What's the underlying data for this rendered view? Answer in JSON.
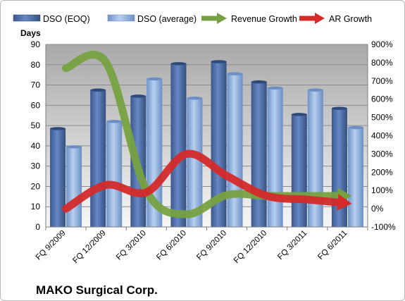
{
  "chart_data": {
    "type": "bar",
    "title": "MAKO Surgical Corp.",
    "ylabel": "Days",
    "categories": [
      "FQ 9/2009",
      "FQ 12/2009",
      "FQ 3/2010",
      "FQ 6/2010",
      "FQ 9/2010",
      "FQ 12/2010",
      "FQ 3/2011",
      "FQ 6/2011"
    ],
    "ylim": [
      0,
      90
    ],
    "y_ticks": [
      "0",
      "10",
      "20",
      "30",
      "40",
      "50",
      "60",
      "70",
      "80",
      "90"
    ],
    "y2lim": [
      -100,
      900
    ],
    "y2_ticks": [
      "-100%",
      "0%",
      "100%",
      "200%",
      "300%",
      "400%",
      "500%",
      "600%",
      "700%",
      "800%",
      "900%"
    ],
    "grid": true,
    "legend": "top",
    "series": [
      {
        "name": "DSO (EOQ)",
        "type": "bar",
        "axis": "left",
        "color": "#4f6fa8",
        "values": [
          48.5,
          67.5,
          64.5,
          80.5,
          81.5,
          71.5,
          55.5,
          58.5
        ]
      },
      {
        "name": "DSO (average)",
        "type": "bar",
        "axis": "left",
        "color": "#8fb1e0",
        "values": [
          39.5,
          52,
          73,
          63.5,
          75.5,
          68.5,
          67.5,
          49
        ]
      },
      {
        "name": "Revenue Growth",
        "type": "line",
        "axis": "right",
        "color": "#77a141",
        "values": [
          770,
          800,
          100,
          -30,
          75,
          70,
          70,
          70
        ]
      },
      {
        "name": "AR Growth",
        "type": "line",
        "axis": "right",
        "color": "#d42a2a",
        "values": [
          0,
          130,
          90,
          300,
          180,
          70,
          50,
          30
        ]
      }
    ]
  }
}
